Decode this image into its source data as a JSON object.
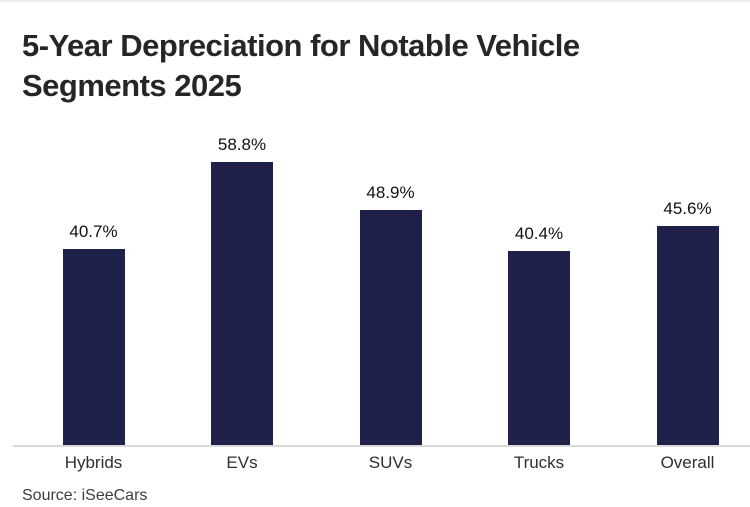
{
  "title": {
    "line1": "5-Year Depreciation for Notable Vehicle",
    "line2": "Segments 2025",
    "full": "5-Year Depreciation for Notable Vehicle Segments 2025"
  },
  "source": "Source: iSeeCars",
  "colors": {
    "background": "#ffffff",
    "bar": "#20214a",
    "axis_line": "#d9d9d9",
    "title_text": "#262626",
    "value_label": "#111111",
    "category_label": "#2f2f2f",
    "source_text": "#3d3d3d"
  },
  "chart_data": {
    "type": "bar",
    "title": "5-Year Depreciation for Notable Vehicle Segments 2025",
    "categories": [
      "Hybrids",
      "EVs",
      "SUVs",
      "Trucks",
      "Overall"
    ],
    "values": [
      40.7,
      58.8,
      48.9,
      40.4,
      45.6
    ],
    "value_labels": [
      "40.7%",
      "58.8%",
      "48.9%",
      "40.4%",
      "45.6%"
    ],
    "unit": "%",
    "xlabel": "",
    "ylabel": "",
    "ylim": [
      0,
      65
    ],
    "grid": false,
    "legend": false,
    "data_labels": true,
    "source": "Source: iSeeCars"
  }
}
